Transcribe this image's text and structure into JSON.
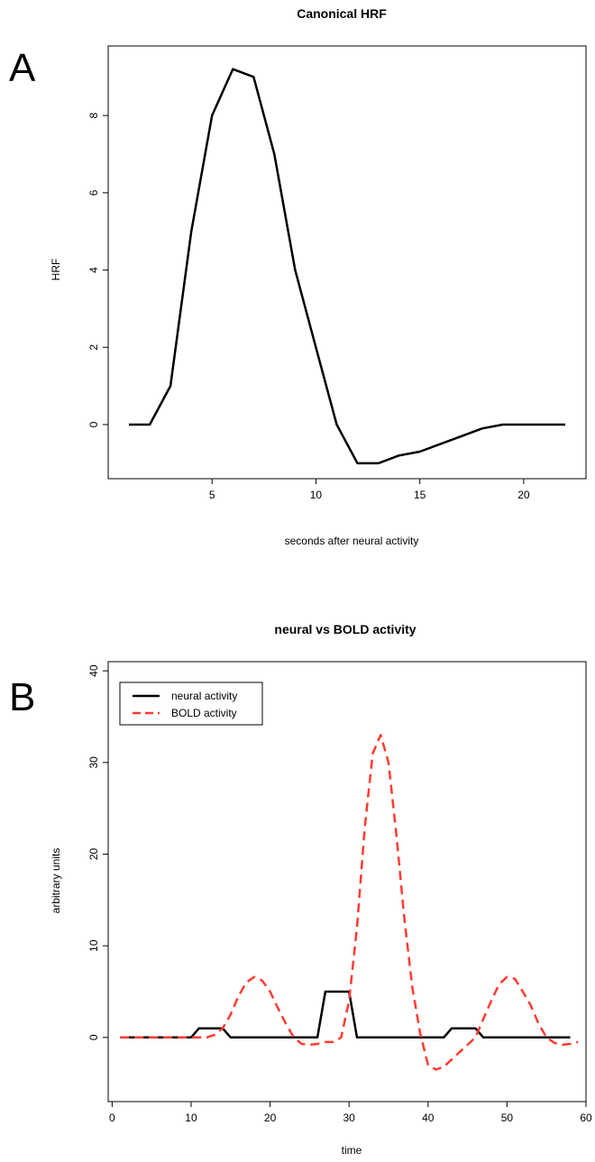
{
  "chart_data": [
    {
      "panel_label": "A",
      "type": "line",
      "title": "Canonical HRF",
      "xlabel": "seconds after neural activity",
      "ylabel": "HRF",
      "xlim": [
        0,
        23
      ],
      "ylim": [
        -1.4,
        9.8
      ],
      "xticks": [
        5,
        10,
        15,
        20
      ],
      "yticks": [
        0,
        2,
        4,
        6,
        8
      ],
      "grid": false,
      "series": [
        {
          "color": "#000000",
          "dash": "solid",
          "x": [
            1,
            2,
            3,
            4,
            5,
            6,
            7,
            8,
            9,
            10,
            11,
            12,
            13,
            14,
            15,
            16,
            17,
            18,
            19,
            20,
            21,
            22
          ],
          "y": [
            0,
            0,
            1,
            5,
            8,
            9.2,
            9,
            7,
            4,
            2,
            0,
            -1,
            -1,
            -0.8,
            -0.7,
            -0.5,
            -0.3,
            -0.1,
            0,
            0,
            0,
            0
          ]
        }
      ]
    },
    {
      "panel_label": "B",
      "type": "line",
      "title": "neural vs BOLD activity",
      "xlabel": "time",
      "ylabel": "arbitrary units",
      "xlim": [
        -0.5,
        60
      ],
      "ylim": [
        -7,
        41
      ],
      "xticks": [
        0,
        10,
        20,
        30,
        40,
        50,
        60
      ],
      "yticks": [
        0,
        10,
        20,
        30,
        40
      ],
      "grid": false,
      "legend_position": "top-left",
      "series": [
        {
          "name": "neural activity",
          "color": "#000000",
          "dash": "solid",
          "x": [
            1,
            10,
            11,
            14,
            15,
            26,
            27,
            30,
            31,
            42,
            43,
            46,
            47,
            58
          ],
          "y": [
            0,
            0,
            1,
            1,
            0,
            0,
            5,
            5,
            0,
            0,
            1,
            1,
            0,
            0
          ]
        },
        {
          "name": "BOLD activity",
          "color": "#ff3b30",
          "dash": "dashed",
          "x": [
            1,
            3,
            5,
            8,
            10,
            11,
            12,
            13,
            14,
            15,
            16,
            17,
            18,
            19,
            20,
            21,
            22,
            23,
            24,
            25,
            26,
            27,
            28,
            29,
            30,
            31,
            32,
            33,
            34,
            35,
            36,
            37,
            38,
            39,
            40,
            41,
            42,
            43,
            44,
            45,
            46,
            47,
            48,
            49,
            50,
            51,
            52,
            53,
            54,
            55,
            56,
            57,
            58,
            59
          ],
          "y": [
            0,
            0,
            0,
            0,
            0,
            0,
            0,
            0.3,
            1,
            2.5,
            4.5,
            6,
            6.6,
            6.2,
            5,
            3.2,
            1.5,
            0,
            -0.7,
            -0.8,
            -0.7,
            -0.5,
            -0.5,
            0,
            4,
            12,
            23,
            31,
            33,
            30,
            22,
            13,
            5.5,
            0.5,
            -3,
            -3.5,
            -3.2,
            -2.4,
            -1.6,
            -0.8,
            0,
            2,
            4,
            5.8,
            6.6,
            6.4,
            5,
            3.5,
            1.5,
            0,
            -0.6,
            -0.8,
            -0.7,
            -0.5
          ]
        }
      ]
    }
  ]
}
